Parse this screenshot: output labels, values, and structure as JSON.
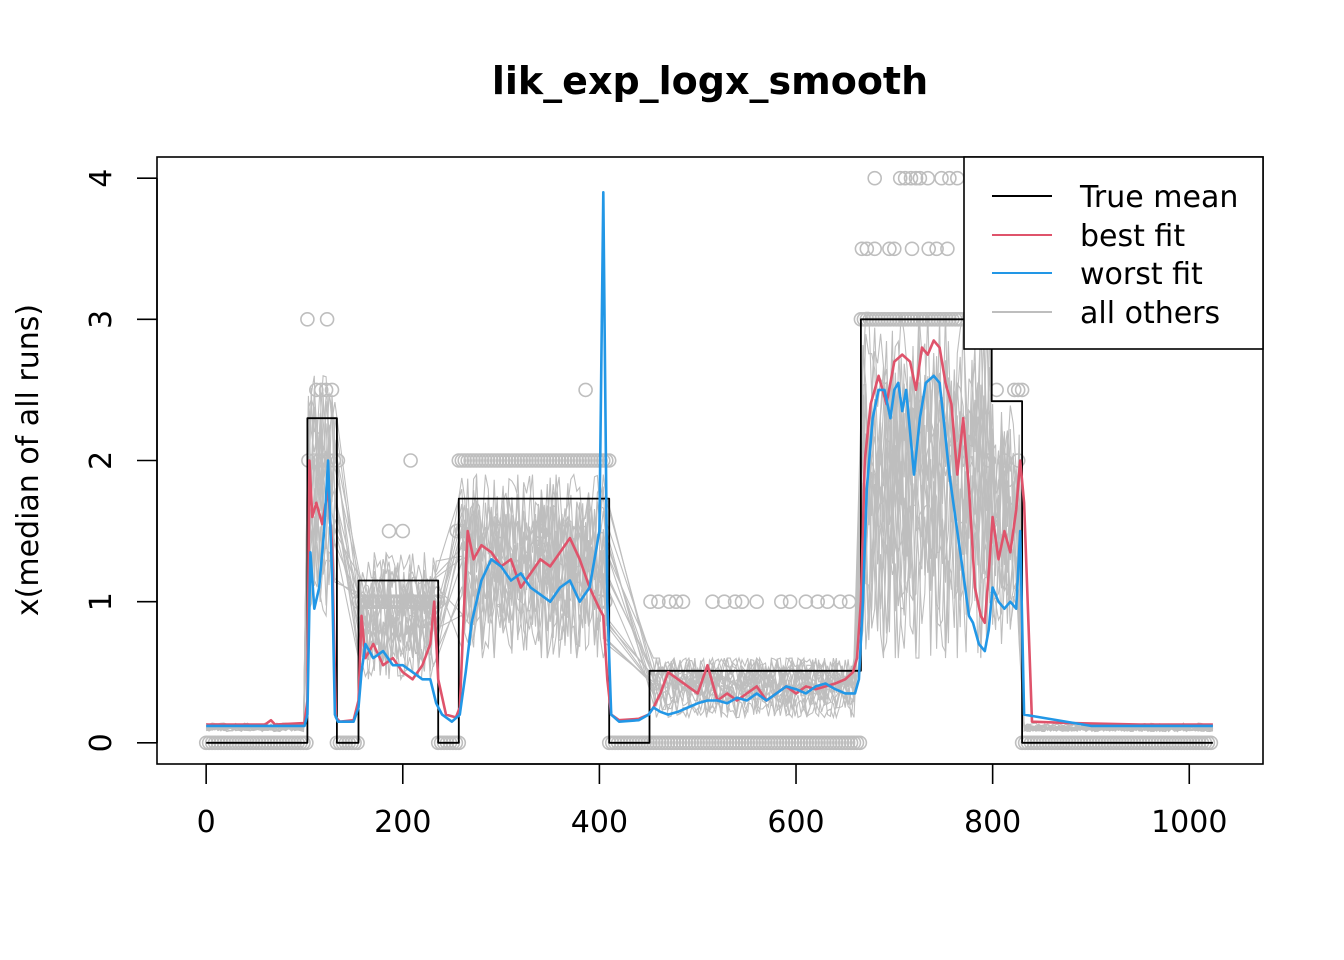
{
  "chart_data": {
    "type": "line",
    "title": "lik_exp_logx_smooth",
    "xlabel": "",
    "ylabel": "x(median of all runs)",
    "xlim": [
      -50,
      1075
    ],
    "ylim": [
      -0.15,
      4.15
    ],
    "xticks": [
      0,
      200,
      400,
      600,
      800,
      1000
    ],
    "yticks": [
      0,
      1,
      2,
      3,
      4
    ],
    "xtick_labels": [
      "0",
      "200",
      "400",
      "600",
      "800",
      "1000"
    ],
    "ytick_labels": [
      "0",
      "1",
      "2",
      "3",
      "4"
    ],
    "legend": {
      "placement": "top-right",
      "entries": [
        {
          "label": "True mean",
          "color": "#000000"
        },
        {
          "label": "best fit",
          "color": "#DF536B"
        },
        {
          "label": "worst fit",
          "color": "#2297E6"
        },
        {
          "label": "all others",
          "color": "#BEBEBE"
        }
      ]
    },
    "series": [
      {
        "name": "True mean",
        "color": "#000000",
        "x": [
          0,
          103,
          103,
          133,
          133,
          155,
          155,
          236,
          236,
          257,
          257,
          410,
          410,
          451,
          451,
          666,
          666,
          799,
          799,
          830,
          830,
          1024
        ],
        "values": [
          0,
          0,
          2.3,
          2.3,
          0,
          0,
          1.15,
          1.15,
          0,
          0,
          1.73,
          1.73,
          0,
          0,
          0.51,
          0.51,
          3.0,
          3.0,
          2.42,
          2.42,
          0,
          0
        ]
      },
      {
        "name": "best fit",
        "color": "#DF536B",
        "x": [
          0,
          60,
          66,
          70,
          100,
          103,
          105,
          108,
          112,
          118,
          124,
          128,
          132,
          136,
          150,
          155,
          158,
          162,
          170,
          180,
          190,
          200,
          210,
          220,
          228,
          232,
          236,
          244,
          254,
          258,
          262,
          266,
          272,
          280,
          290,
          300,
          310,
          320,
          330,
          340,
          350,
          360,
          370,
          380,
          390,
          400,
          404,
          408,
          412,
          420,
          440,
          450,
          455,
          462,
          470,
          480,
          490,
          500,
          510,
          520,
          530,
          540,
          550,
          560,
          570,
          580,
          590,
          600,
          610,
          620,
          630,
          640,
          650,
          658,
          662,
          666,
          670,
          676,
          684,
          692,
          700,
          708,
          716,
          722,
          728,
          734,
          740,
          746,
          752,
          758,
          764,
          770,
          776,
          782,
          788,
          792,
          796,
          800,
          806,
          812,
          818,
          824,
          828,
          832,
          840,
          880,
          950,
          1024
        ],
        "values": [
          0.13,
          0.13,
          0.16,
          0.13,
          0.14,
          0.3,
          2.0,
          1.6,
          1.7,
          1.55,
          1.8,
          1.4,
          0.18,
          0.15,
          0.16,
          0.3,
          0.9,
          0.6,
          0.7,
          0.55,
          0.6,
          0.5,
          0.45,
          0.55,
          0.7,
          1.0,
          0.45,
          0.2,
          0.18,
          0.25,
          0.9,
          1.5,
          1.3,
          1.4,
          1.35,
          1.25,
          1.3,
          1.1,
          1.2,
          1.3,
          1.25,
          1.35,
          1.45,
          1.3,
          1.1,
          0.95,
          0.9,
          0.45,
          0.2,
          0.16,
          0.17,
          0.2,
          0.25,
          0.35,
          0.5,
          0.45,
          0.4,
          0.35,
          0.55,
          0.3,
          0.35,
          0.3,
          0.35,
          0.4,
          0.3,
          0.35,
          0.4,
          0.35,
          0.4,
          0.38,
          0.4,
          0.42,
          0.45,
          0.5,
          0.6,
          1.0,
          2.0,
          2.4,
          2.6,
          2.4,
          2.7,
          2.75,
          2.7,
          2.5,
          2.8,
          2.75,
          2.85,
          2.8,
          2.55,
          2.4,
          1.9,
          2.3,
          1.8,
          1.1,
          0.9,
          0.85,
          1.2,
          1.6,
          1.3,
          1.5,
          1.35,
          1.65,
          2.0,
          1.7,
          0.15,
          0.14,
          0.13,
          0.13
        ]
      },
      {
        "name": "worst fit",
        "color": "#2297E6",
        "x": [
          0,
          100,
          103,
          106,
          110,
          115,
          120,
          124,
          128,
          131,
          134,
          150,
          155,
          158,
          162,
          170,
          180,
          190,
          200,
          210,
          220,
          228,
          234,
          240,
          250,
          258,
          264,
          270,
          280,
          290,
          300,
          310,
          320,
          330,
          340,
          350,
          360,
          370,
          380,
          390,
          400,
          404,
          408,
          412,
          420,
          440,
          450,
          455,
          462,
          470,
          480,
          490,
          500,
          510,
          520,
          530,
          540,
          550,
          560,
          570,
          580,
          590,
          600,
          610,
          620,
          630,
          640,
          650,
          660,
          664,
          668,
          672,
          678,
          684,
          690,
          696,
          700,
          704,
          708,
          712,
          716,
          720,
          726,
          732,
          740,
          746,
          750,
          756,
          762,
          770,
          776,
          780,
          786,
          792,
          796,
          800,
          806,
          812,
          818,
          824,
          828,
          832,
          900,
          1024
        ],
        "values": [
          0.12,
          0.12,
          0.2,
          1.35,
          0.95,
          1.1,
          1.5,
          2.0,
          1.2,
          0.2,
          0.15,
          0.15,
          0.25,
          0.5,
          0.7,
          0.6,
          0.65,
          0.55,
          0.55,
          0.5,
          0.45,
          0.45,
          0.28,
          0.2,
          0.15,
          0.2,
          0.5,
          0.85,
          1.15,
          1.3,
          1.25,
          1.15,
          1.2,
          1.1,
          1.05,
          1.0,
          1.1,
          1.15,
          1.0,
          1.1,
          1.5,
          3.9,
          1.0,
          0.2,
          0.15,
          0.16,
          0.2,
          0.25,
          0.22,
          0.2,
          0.22,
          0.25,
          0.28,
          0.3,
          0.3,
          0.28,
          0.32,
          0.3,
          0.35,
          0.3,
          0.35,
          0.4,
          0.38,
          0.35,
          0.4,
          0.42,
          0.38,
          0.35,
          0.35,
          0.45,
          1.0,
          1.8,
          2.3,
          2.5,
          2.5,
          2.3,
          2.5,
          2.55,
          2.35,
          2.5,
          2.2,
          1.9,
          2.3,
          2.55,
          2.6,
          2.55,
          2.3,
          1.9,
          1.6,
          1.2,
          0.9,
          0.85,
          0.7,
          0.65,
          0.8,
          1.1,
          1.0,
          0.95,
          1.0,
          0.95,
          1.5,
          0.2,
          0.12,
          0.12
        ]
      }
    ],
    "others_band": {
      "name": "all others",
      "color": "#BEBEBE",
      "count": 18,
      "segments": [
        {
          "x": [
            0,
            100
          ],
          "low": 0.08,
          "high": 0.14
        },
        {
          "x": [
            104,
            132
          ],
          "low": 0.9,
          "high": 2.6
        },
        {
          "x": [
            156,
            235
          ],
          "low": 0.45,
          "high": 1.35
        },
        {
          "x": [
            260,
            408
          ],
          "low": 0.6,
          "high": 1.9
        },
        {
          "x": [
            455,
            660
          ],
          "low": 0.18,
          "high": 0.6
        },
        {
          "x": [
            668,
            798
          ],
          "low": 0.6,
          "high": 3.05
        },
        {
          "x": [
            800,
            828
          ],
          "low": 0.7,
          "high": 2.4
        },
        {
          "x": [
            832,
            1024
          ],
          "low": 0.08,
          "high": 0.14
        }
      ]
    },
    "observations": {
      "color": "#BEBEBE",
      "outliers": [
        [
          103,
          3.0
        ],
        [
          123,
          3.0
        ],
        [
          112,
          2.5
        ],
        [
          117,
          2.5
        ],
        [
          122,
          2.5
        ],
        [
          128,
          2.5
        ],
        [
          104,
          2.0
        ],
        [
          110,
          2.0
        ],
        [
          115,
          2.0
        ],
        [
          120,
          2.0
        ],
        [
          125,
          2.0
        ],
        [
          130,
          2.0
        ],
        [
          134,
          2.0
        ],
        [
          208,
          2.0
        ],
        [
          186,
          1.5
        ],
        [
          200,
          1.5
        ],
        [
          255,
          1.5
        ],
        [
          260,
          1.5
        ],
        [
          300,
          1.5
        ],
        [
          340,
          1.5
        ],
        [
          386,
          2.5
        ],
        [
          400,
          1.0
        ],
        [
          406,
          1.0
        ],
        [
          452,
          1.0
        ],
        [
          460,
          1.0
        ],
        [
          471,
          1.0
        ],
        [
          478,
          1.0
        ],
        [
          485,
          1.0
        ],
        [
          515,
          1.0
        ],
        [
          527,
          1.0
        ],
        [
          538,
          1.0
        ],
        [
          545,
          1.0
        ],
        [
          560,
          1.0
        ],
        [
          585,
          1.0
        ],
        [
          594,
          1.0
        ],
        [
          610,
          1.0
        ],
        [
          622,
          1.0
        ],
        [
          632,
          1.0
        ],
        [
          645,
          1.0
        ],
        [
          654,
          1.0
        ],
        [
          667,
          3.5
        ],
        [
          672,
          3.5
        ],
        [
          680,
          3.5
        ],
        [
          695,
          3.5
        ],
        [
          700,
          3.5
        ],
        [
          718,
          3.5
        ],
        [
          735,
          3.5
        ],
        [
          743,
          3.5
        ],
        [
          754,
          3.5
        ],
        [
          680,
          4.0
        ],
        [
          706,
          4.0
        ],
        [
          711,
          4.0
        ],
        [
          717,
          4.0
        ],
        [
          722,
          4.0
        ],
        [
          726,
          4.0
        ],
        [
          734,
          4.0
        ],
        [
          748,
          4.0
        ],
        [
          756,
          4.0
        ],
        [
          764,
          4.0
        ],
        [
          804,
          2.5
        ],
        [
          822,
          2.5
        ],
        [
          826,
          2.5
        ],
        [
          830,
          2.5
        ],
        [
          796,
          2.0
        ],
        [
          812,
          2.0
        ],
        [
          826,
          2.0
        ]
      ],
      "dense_rows": [
        {
          "y": 0,
          "x": [
            0,
            103
          ]
        },
        {
          "y": 0,
          "x": [
            133,
            155
          ]
        },
        {
          "y": 0,
          "x": [
            236,
            257
          ]
        },
        {
          "y": 0,
          "x": [
            410,
            666
          ]
        },
        {
          "y": 0,
          "x": [
            830,
            1024
          ]
        },
        {
          "y": 1,
          "x": [
            155,
            236
          ]
        },
        {
          "y": 2,
          "x": [
            257,
            410
          ]
        },
        {
          "y": 3,
          "x": [
            666,
            770
          ]
        }
      ]
    }
  }
}
